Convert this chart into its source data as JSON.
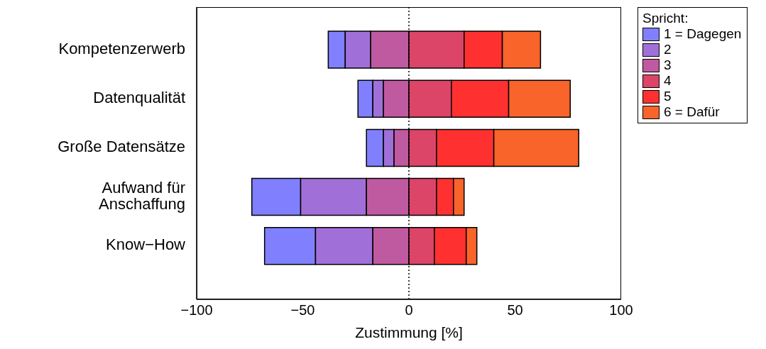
{
  "chart_data": {
    "type": "bar",
    "orientation": "horizontal",
    "xlabel": "Zustimmung [%]",
    "legend_title": "Spricht:",
    "legend": "right",
    "grid": false,
    "categories": [
      "Kompetenzerwerb",
      "Datenqualität",
      "Große Datensätze",
      "Aufwand für Anschaffung",
      "Know−How"
    ],
    "xlim": [
      -100,
      100
    ],
    "xticks": [
      -100,
      -50,
      0,
      50,
      100
    ],
    "ref_lines": [
      {
        "axis": "x",
        "value": 0,
        "line_style": "dotted",
        "color": "#000000"
      }
    ],
    "series": [
      {
        "name": "1 = Dagegen",
        "color": "#8080ff",
        "base": [
          -38,
          -24,
          -20,
          -74,
          -68
        ],
        "values": [
          8,
          7,
          8,
          23,
          24
        ]
      },
      {
        "name": "2",
        "color": "#a070d8",
        "base": [
          -30,
          -17,
          -12,
          -51,
          -44
        ],
        "values": [
          12,
          5,
          5,
          31,
          27
        ]
      },
      {
        "name": "3",
        "color": "#c05aa0",
        "base": [
          -18,
          -12,
          -7,
          -20,
          -17
        ],
        "values": [
          18,
          12,
          7,
          20,
          17
        ]
      },
      {
        "name": "4",
        "color": "#dc4468",
        "base": [
          0,
          0,
          0,
          0,
          0
        ],
        "values": [
          26,
          20,
          13,
          13,
          12
        ]
      },
      {
        "name": "5",
        "color": "#ff3030",
        "base": [
          26,
          20,
          13,
          13,
          12
        ],
        "values": [
          18,
          27,
          27,
          8,
          15
        ]
      },
      {
        "name": "6 = Dafür",
        "color": "#f8642a",
        "base": [
          44,
          47,
          40,
          21,
          27
        ],
        "values": [
          18,
          29,
          40,
          5,
          5
        ]
      }
    ]
  }
}
